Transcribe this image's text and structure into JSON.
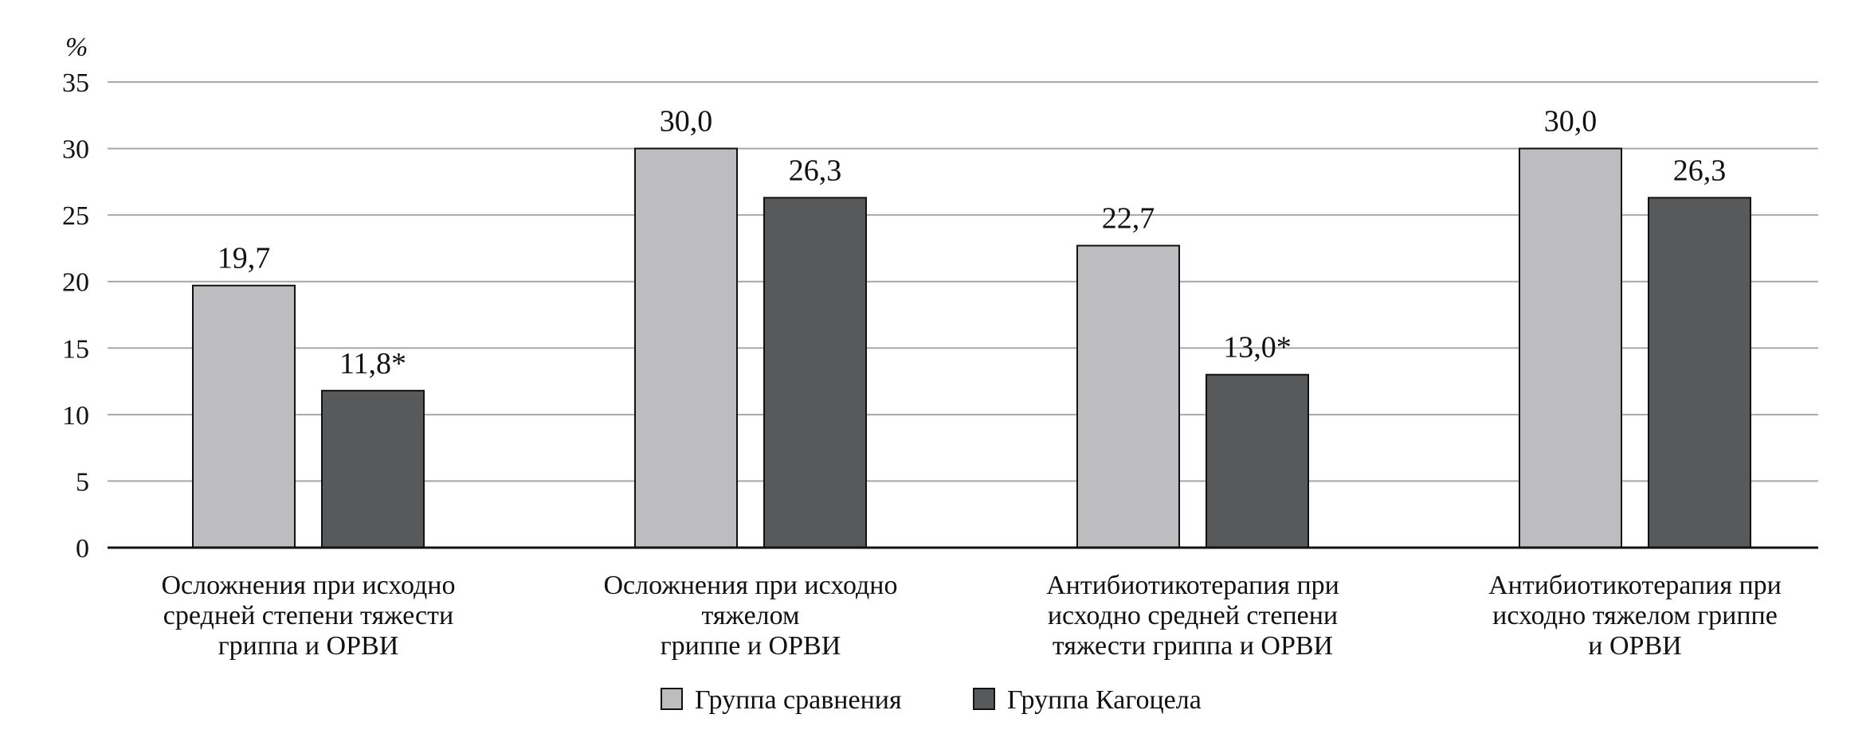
{
  "chart_data": {
    "type": "bar",
    "unit_label": "%",
    "ylim": [
      0,
      35
    ],
    "yticks": [
      0,
      5,
      10,
      15,
      20,
      25,
      30,
      35
    ],
    "grid": true,
    "legend_position": "bottom",
    "categories": [
      [
        "Осложнения при исходно",
        "средней степени тяжести",
        "гриппа и ОРВИ"
      ],
      [
        "Осложнения при исходно",
        "тяжелом",
        "гриппе и ОРВИ"
      ],
      [
        "Антибиотикотерапия при",
        "исходно средней степени",
        "тяжести гриппа и ОРВИ"
      ],
      [
        "Антибиотикотерапия при",
        "исходно тяжелом гриппе",
        "и ОРВИ"
      ]
    ],
    "series": [
      {
        "name": "Группа сравнения",
        "color": "#bdbdc0",
        "values": [
          19.7,
          30.0,
          22.7,
          30.0
        ],
        "labels": [
          "19,7",
          "30,0",
          "22,7",
          "30,0"
        ]
      },
      {
        "name": "Группа Кагоцела",
        "color": "#58595b",
        "values": [
          11.8,
          26.3,
          13.0,
          26.3
        ],
        "labels": [
          "11,8*",
          "26,3",
          "13,0*",
          "26,3"
        ]
      }
    ]
  }
}
